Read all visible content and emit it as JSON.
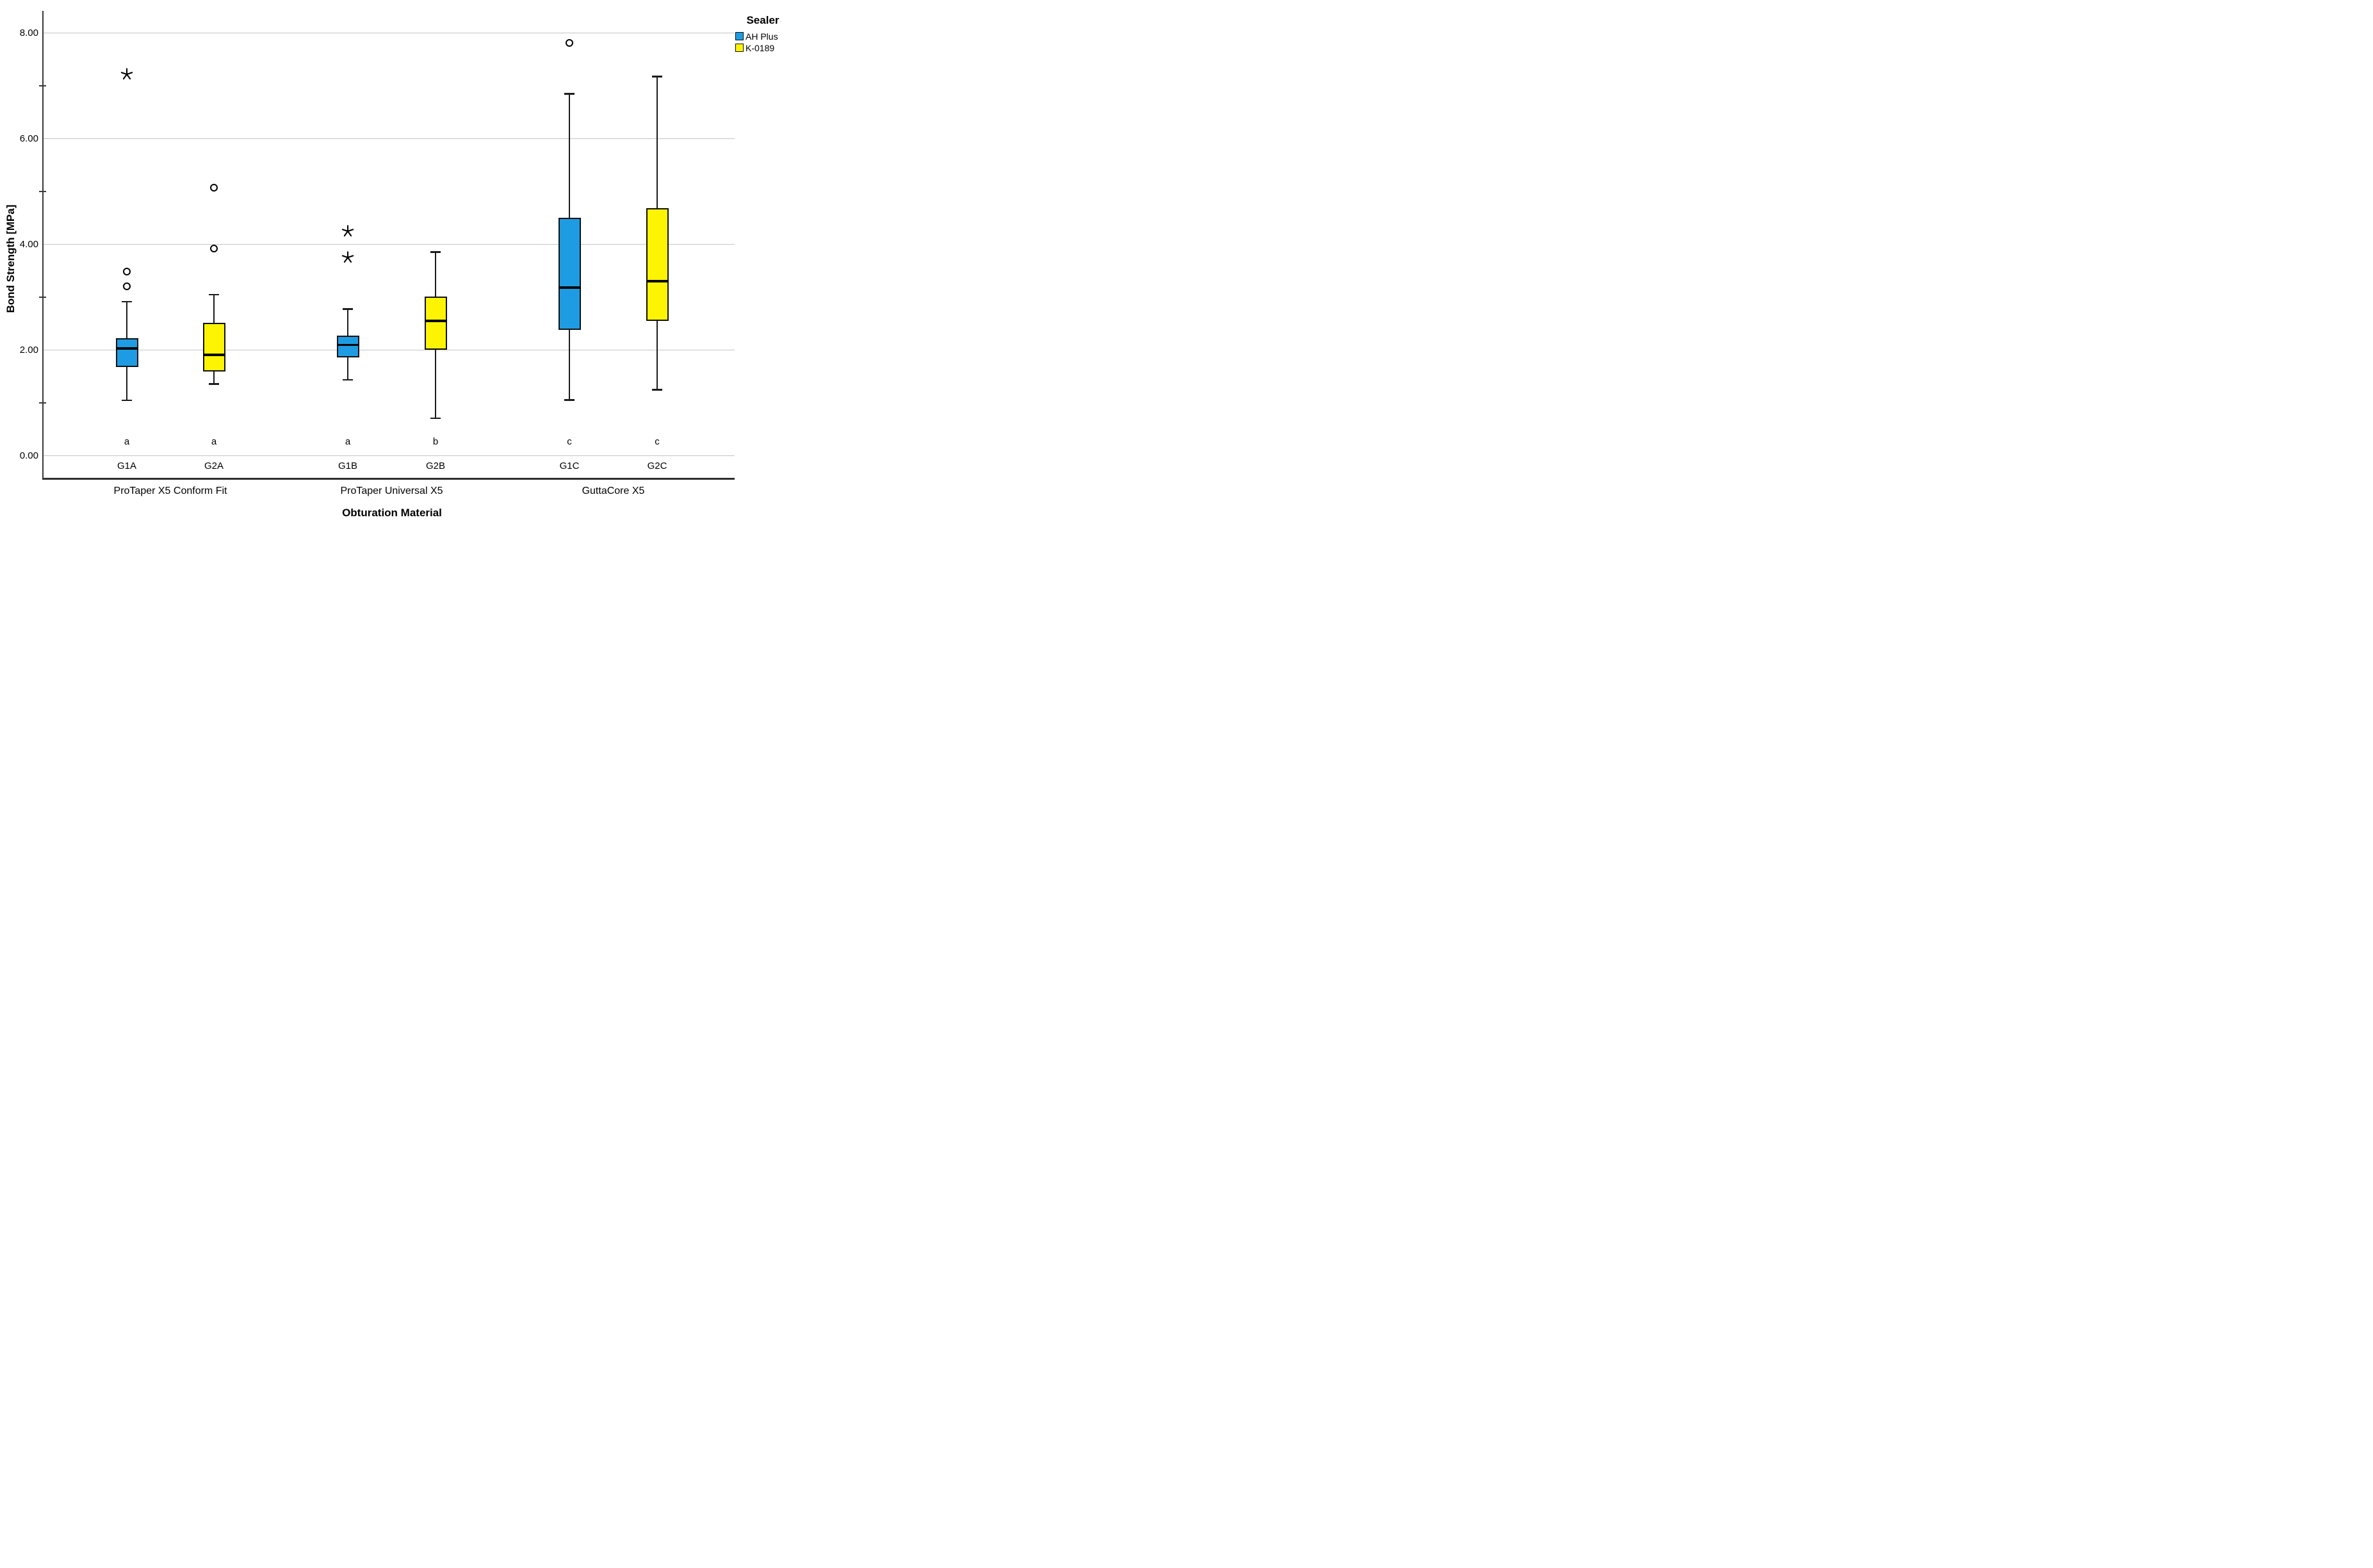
{
  "chart_data": {
    "type": "boxplot",
    "title": "",
    "xlabel": "Obturation Material",
    "ylabel": "Bond Strength [MPa]",
    "ylim": [
      0,
      8
    ],
    "yticks": [
      0,
      2,
      4,
      6,
      8
    ],
    "ytick_labels": [
      "0.00",
      "2.00",
      "4.00",
      "6.00",
      "8.00"
    ],
    "minor_yticks": [
      1,
      3,
      5,
      7
    ],
    "grid": "horizontal-at-major-ticks",
    "legend": {
      "title": "Sealer",
      "position": "top-right",
      "entries": [
        {
          "label": "AH Plus",
          "color": "#1E9CE3"
        },
        {
          "label": "K-0189",
          "color": "#FCF403"
        }
      ]
    },
    "groups": [
      {
        "label": "ProTaper X5 Conform Fit",
        "boxes": [
          {
            "id": "G1A",
            "sealer": "AH Plus",
            "color": "#1E9CE3",
            "whisker_low": 1.05,
            "q1": 1.68,
            "median": 2.03,
            "q3": 2.23,
            "whisker_high": 2.92,
            "outliers_circle": [
              3.21,
              3.49
            ],
            "outliers_star": [
              7.22
            ],
            "sig_letter": "a"
          },
          {
            "id": "G2A",
            "sealer": "K-0189",
            "color": "#FCF403",
            "whisker_low": 1.36,
            "q1": 1.6,
            "median": 1.91,
            "q3": 2.52,
            "whisker_high": 3.05,
            "outliers_circle": [
              3.92,
              5.07
            ],
            "outliers_star": [],
            "sig_letter": "a"
          }
        ]
      },
      {
        "label": "ProTaper Universal X5",
        "boxes": [
          {
            "id": "G1B",
            "sealer": "AH Plus",
            "color": "#1E9CE3",
            "whisker_low": 1.44,
            "q1": 1.86,
            "median": 2.1,
            "q3": 2.27,
            "whisker_high": 2.78,
            "outliers_circle": [],
            "outliers_star": [
              3.75,
              4.25
            ],
            "sig_letter": "a"
          },
          {
            "id": "G2B",
            "sealer": "K-0189",
            "color": "#FCF403",
            "whisker_low": 0.71,
            "q1": 2.01,
            "median": 2.55,
            "q3": 3.01,
            "whisker_high": 3.86,
            "outliers_circle": [],
            "outliers_star": [],
            "sig_letter": "b"
          }
        ]
      },
      {
        "label": "GuttaCore X5",
        "boxes": [
          {
            "id": "G1C",
            "sealer": "AH Plus",
            "color": "#1E9CE3",
            "whisker_low": 1.06,
            "q1": 2.38,
            "median": 3.18,
            "q3": 4.5,
            "whisker_high": 6.85,
            "outliers_circle": [
              7.81
            ],
            "outliers_star": [],
            "sig_letter": "c"
          },
          {
            "id": "G2C",
            "sealer": "K-0189",
            "color": "#FCF403",
            "whisker_low": 1.25,
            "q1": 2.55,
            "median": 3.31,
            "q3": 4.69,
            "whisker_high": 7.18,
            "outliers_circle": [],
            "outliers_star": [],
            "sig_letter": "c"
          }
        ]
      }
    ]
  },
  "colors": {
    "blue": "#1E9CE3",
    "yellow": "#FCF403",
    "gridline": "#C5C5C5",
    "axis": "#3A3A3A",
    "box_border": "#111111",
    "background": "#FFFFFF"
  }
}
